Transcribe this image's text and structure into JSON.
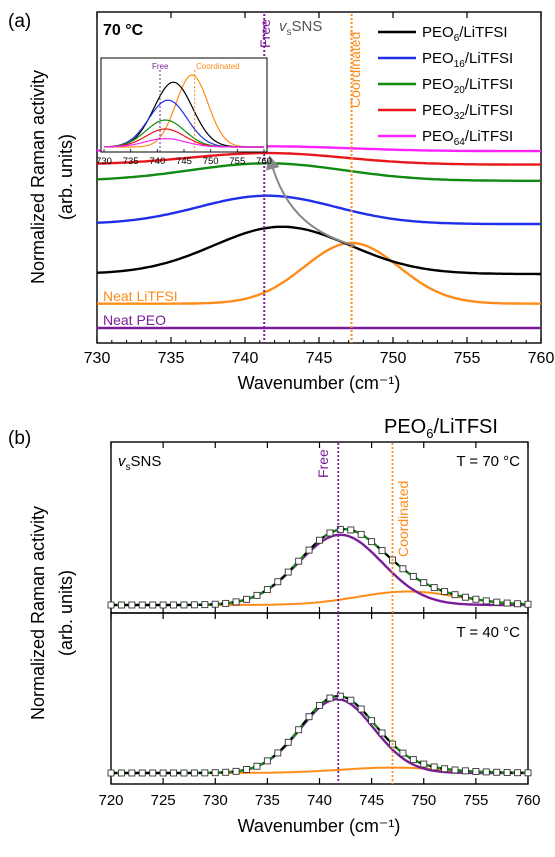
{
  "chart_data": [
    {
      "type": "line",
      "panel": "(a)",
      "annotation_temp": "70 °C",
      "annotation_mode": "SNS",
      "label_free": "Free",
      "label_coordinated": "Coordinated",
      "xlabel": "Wavenumber (cm⁻¹)",
      "ylabel": "Normalized Raman activity",
      "ylabel_unit": "(arb. units)",
      "xlim": [
        730,
        760
      ],
      "x_ticks": [
        730,
        735,
        740,
        745,
        750,
        755,
        760
      ],
      "free_position": 741.3,
      "coordinated_position": 747.2,
      "legend_position": "top-right",
      "series": [
        {
          "name": "PEO6/LiTFSI",
          "name_base": "PEO",
          "name_sub": "6",
          "name_tail": "/LiTFSI",
          "color": "#000000",
          "offset": 0.2,
          "center": 742.5,
          "sigma": 4.6,
          "amp": 0.175
        },
        {
          "name": "PEO16/LiTFSI",
          "name_base": "PEO",
          "name_sub": "16",
          "name_tail": "/LiTFSI",
          "color": "#1f2ee8",
          "offset": 0.385,
          "center": 741.5,
          "sigma": 4.6,
          "amp": 0.105
        },
        {
          "name": "PEO20/LiTFSI",
          "name_base": "PEO",
          "name_sub": "20",
          "name_tail": "/LiTFSI",
          "color": "#118a11",
          "offset": 0.545,
          "center": 741.5,
          "sigma": 5.2,
          "amp": 0.065
        },
        {
          "name": "PEO32/LiTFSI",
          "name_base": "PEO",
          "name_sub": "32",
          "name_tail": "/LiTFSI",
          "color": "#e8161a",
          "offset": 0.605,
          "center": 741.5,
          "sigma": 5.2,
          "amp": 0.043
        },
        {
          "name": "PEO64/LiTFSI",
          "name_base": "PEO",
          "name_sub": "64",
          "name_tail": "/LiTFSI",
          "color": "#ff22ff",
          "offset": 0.655,
          "center": 741.5,
          "sigma": 5.5,
          "amp": 0.018
        }
      ],
      "neat_series": [
        {
          "name": "Neat LiTFSI",
          "color": "#ff8c1a",
          "offset": 0.09,
          "center": 747.2,
          "sigma": 3.2,
          "amp": 0.225
        },
        {
          "name": "Neat PEO",
          "color": "#7b1e9a",
          "offset": 0.0,
          "center": 745.0,
          "sigma": 5.0,
          "amp": 0.0
        }
      ],
      "inset": {
        "xlim": [
          730,
          760
        ],
        "x_ticks": [
          730,
          735,
          740,
          745,
          750,
          755,
          760
        ],
        "label_free": "Free",
        "label_coordinated": "Coordinated",
        "free_position": 740.5,
        "coordinated_position": 747.0
      }
    },
    {
      "type": "line",
      "panel": "(b)",
      "title_base": "PEO",
      "title_sub": "6",
      "title_tail": "/LiTFSI",
      "annotation_mode": "SNS",
      "label_free": "Free",
      "label_coordinated": "Coordinated",
      "xlabel": "Wavenumber (cm⁻¹)",
      "ylabel": "Normalized Raman activity",
      "ylabel_unit": "(arb. units)",
      "xlim": [
        720,
        760
      ],
      "x_ticks": [
        720,
        725,
        730,
        735,
        740,
        745,
        750,
        755,
        760
      ],
      "free_position": 741.8,
      "coordinated_position": 747.0,
      "subpanels": [
        {
          "temperature": "T = 70 °C",
          "free": {
            "center": 742.0,
            "sigma": 4.0,
            "amp": 0.78
          },
          "coordinated": {
            "center": 748.5,
            "sigma": 4.8,
            "amp": 0.15
          }
        },
        {
          "temperature": "T = 40 °C",
          "free": {
            "center": 741.7,
            "sigma": 3.5,
            "amp": 0.82
          },
          "coordinated": {
            "center": 747.0,
            "sigma": 5.0,
            "amp": 0.06
          }
        }
      ]
    }
  ]
}
